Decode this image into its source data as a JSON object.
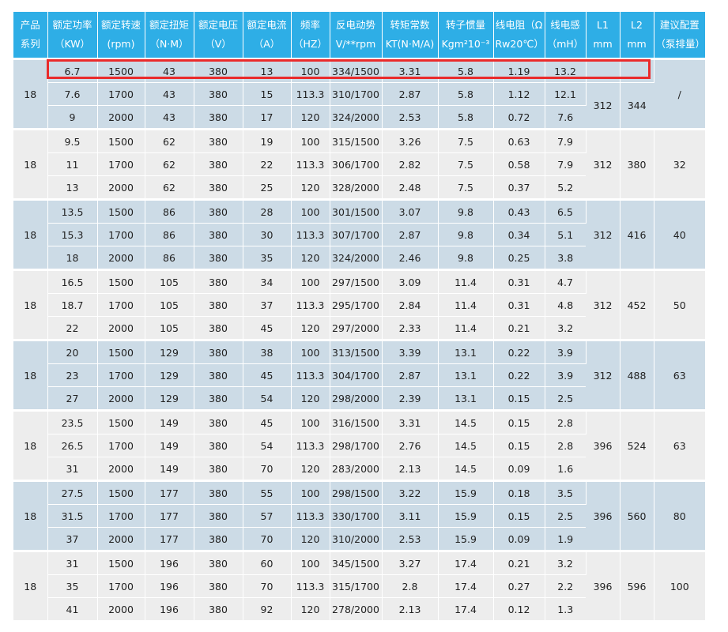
{
  "headers": [
    [
      "产品",
      "系列"
    ],
    [
      "额定功率",
      "（KW）"
    ],
    [
      "额定转速",
      "(rpm)"
    ],
    [
      "额定扭矩",
      "（N·M）"
    ],
    [
      "额定电压",
      "（V）"
    ],
    [
      "额定电流",
      "（A）"
    ],
    [
      "频率",
      "（HZ）"
    ],
    [
      "反电动势",
      "V/**rpm"
    ],
    [
      "转矩常数",
      "KT(N·M/A)"
    ],
    [
      "转子惯量",
      "Kgm²10⁻³"
    ],
    [
      "线电阻（Ω",
      "Rw20℃）"
    ],
    [
      "线电感",
      "（mH）"
    ],
    [
      "L1",
      "mm"
    ],
    [
      "L2",
      "mm"
    ],
    [
      "建议配置",
      "（泵排量）"
    ]
  ],
  "groups": [
    {
      "series": "18",
      "L1": "",
      "L2": "",
      "config": "/",
      "rows": [
        [
          "6.7",
          "1500",
          "43",
          "380",
          "13",
          "100",
          "334/1500",
          "3.31",
          "5.8",
          "1.19",
          "13.2"
        ],
        [
          "7.6",
          "1700",
          "43",
          "380",
          "15",
          "113.3",
          "310/1700",
          "2.87",
          "5.8",
          "1.12",
          "12.1"
        ],
        [
          "9",
          "2000",
          "43",
          "380",
          "17",
          "120",
          "324/2000",
          "2.53",
          "5.8",
          "0.72",
          "7.6"
        ]
      ],
      "L1r": "312",
      "L2r": "344"
    },
    {
      "series": "18",
      "L1r": "312",
      "L2r": "380",
      "config": "32",
      "rows": [
        [
          "9.5",
          "1500",
          "62",
          "380",
          "19",
          "100",
          "315/1500",
          "3.26",
          "7.5",
          "0.63",
          "7.9"
        ],
        [
          "11",
          "1700",
          "62",
          "380",
          "22",
          "113.3",
          "306/1700",
          "2.82",
          "7.5",
          "0.58",
          "7.9"
        ],
        [
          "13",
          "2000",
          "62",
          "380",
          "25",
          "120",
          "328/2000",
          "2.48",
          "7.5",
          "0.37",
          "5.2"
        ]
      ]
    },
    {
      "series": "18",
      "L1r": "312",
      "L2r": "416",
      "config": "40",
      "rows": [
        [
          "13.5",
          "1500",
          "86",
          "380",
          "28",
          "100",
          "301/1500",
          "3.07",
          "9.8",
          "0.43",
          "6.5"
        ],
        [
          "15.3",
          "1700",
          "86",
          "380",
          "30",
          "113.3",
          "307/1700",
          "2.87",
          "9.8",
          "0.34",
          "5.1"
        ],
        [
          "18",
          "2000",
          "86",
          "380",
          "35",
          "120",
          "324/2000",
          "2.46",
          "9.8",
          "0.25",
          "3.8"
        ]
      ]
    },
    {
      "series": "18",
      "L1r": "312",
      "L2r": "452",
      "config": "50",
      "rows": [
        [
          "16.5",
          "1500",
          "105",
          "380",
          "34",
          "100",
          "297/1500",
          "3.09",
          "11.4",
          "0.31",
          "4.7"
        ],
        [
          "18.7",
          "1700",
          "105",
          "380",
          "37",
          "113.3",
          "295/1700",
          "2.84",
          "11.4",
          "0.31",
          "4.8"
        ],
        [
          "22",
          "2000",
          "105",
          "380",
          "45",
          "120",
          "297/2000",
          "2.33",
          "11.4",
          "0.21",
          "3.2"
        ]
      ]
    },
    {
      "series": "18",
      "L1r": "312",
      "L2r": "488",
      "config": "63",
      "rows": [
        [
          "20",
          "1500",
          "129",
          "380",
          "38",
          "100",
          "313/1500",
          "3.39",
          "13.1",
          "0.22",
          "3.9"
        ],
        [
          "23",
          "1700",
          "129",
          "380",
          "45",
          "113.3",
          "304/1700",
          "2.87",
          "13.1",
          "0.22",
          "3.9"
        ],
        [
          "27",
          "2000",
          "129",
          "380",
          "54",
          "120",
          "298/2000",
          "2.39",
          "13.1",
          "0.15",
          "2.5"
        ]
      ]
    },
    {
      "series": "18",
      "L1r": "396",
      "L2r": "524",
      "config": "63",
      "rows": [
        [
          "23.5",
          "1500",
          "149",
          "380",
          "45",
          "100",
          "316/1500",
          "3.31",
          "14.5",
          "0.15",
          "2.8"
        ],
        [
          "26.5",
          "1700",
          "149",
          "380",
          "54",
          "113.3",
          "298/1700",
          "2.76",
          "14.5",
          "0.15",
          "2.8"
        ],
        [
          "31",
          "2000",
          "149",
          "380",
          "70",
          "120",
          "283/2000",
          "2.13",
          "14.5",
          "0.09",
          "1.6"
        ]
      ]
    },
    {
      "series": "18",
      "L1r": "396",
      "L2r": "560",
      "config": "80",
      "rows": [
        [
          "27.5",
          "1500",
          "177",
          "380",
          "55",
          "100",
          "298/1500",
          "3.22",
          "15.9",
          "0.18",
          "3.5"
        ],
        [
          "31.5",
          "1700",
          "177",
          "380",
          "57",
          "113.3",
          "330/1700",
          "3.11",
          "15.9",
          "0.15",
          "2.5"
        ],
        [
          "37",
          "2000",
          "177",
          "380",
          "70",
          "120",
          "310/2000",
          "2.53",
          "15.9",
          "0.09",
          "1.9"
        ]
      ]
    },
    {
      "series": "18",
      "L1r": "396",
      "L2r": "596",
      "config": "100",
      "rows": [
        [
          "31",
          "1500",
          "196",
          "380",
          "60",
          "100",
          "345/1500",
          "3.27",
          "17.4",
          "0.21",
          "3.2"
        ],
        [
          "35",
          "1700",
          "196",
          "380",
          "70",
          "113.3",
          "315/1700",
          "2.8",
          "17.4",
          "0.27",
          "2.2"
        ],
        [
          "41",
          "2000",
          "196",
          "380",
          "92",
          "120",
          "278/2000",
          "2.13",
          "17.4",
          "0.12",
          "1.3"
        ]
      ]
    }
  ],
  "colors": {
    "header": "#2eaee6",
    "row_odd": "#ccdbe6",
    "row_even": "#ededed",
    "highlight": "#ea2b2b"
  }
}
